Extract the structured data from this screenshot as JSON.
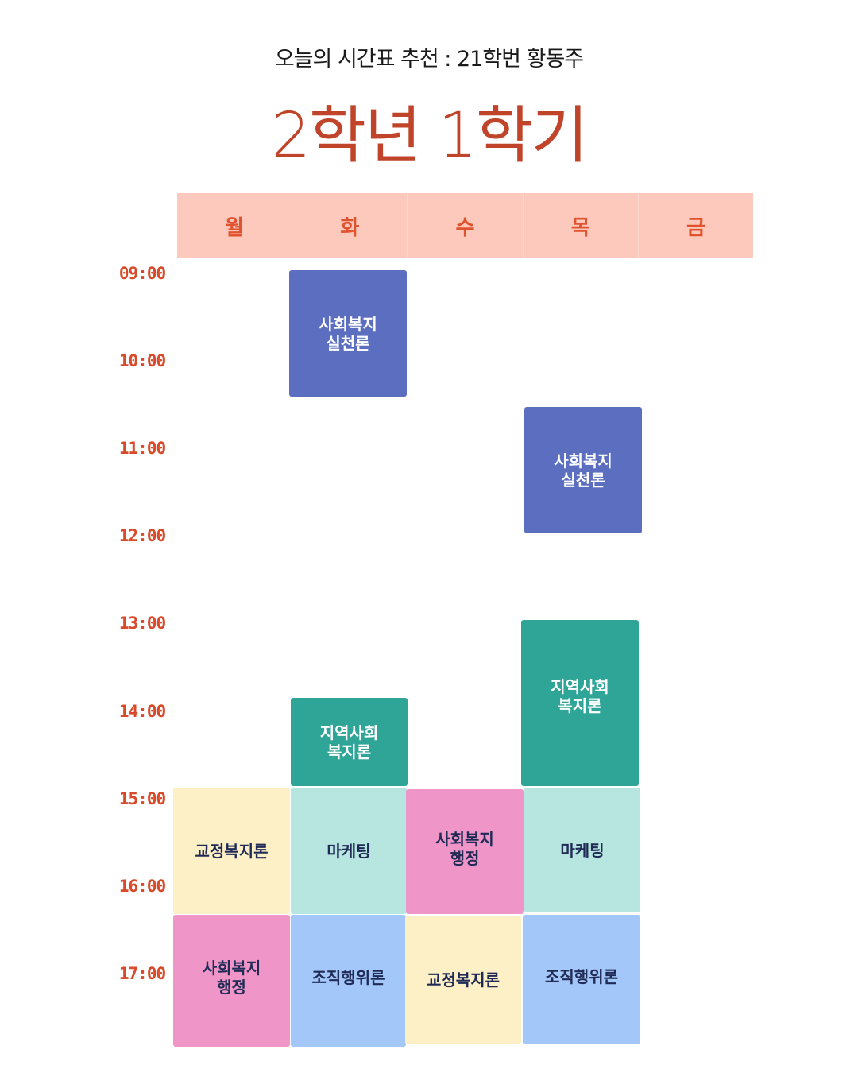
{
  "header": {
    "subtitle": "오늘의 시간표 추천 : 21학번 황동주",
    "title": "2학년 1학기"
  },
  "days": [
    "월",
    "화",
    "수",
    "목",
    "금"
  ],
  "times": [
    "09:00",
    "10:00",
    "11:00",
    "12:00",
    "13:00",
    "14:00",
    "15:00",
    "16:00",
    "17:00"
  ],
  "colors": {
    "accent": "#c0442a",
    "header_bg": "#fdc9bc",
    "indigo": "#5b6ebf",
    "teal": "#2fa597",
    "light_yellow": "#fdefc6",
    "light_teal": "#b7e5df",
    "pink": "#f095c7",
    "light_blue": "#a4c7fa"
  },
  "courses": [
    {
      "name": "사회복지\n실천론",
      "day": "화",
      "color": "indigo"
    },
    {
      "name": "사회복지\n실천론",
      "day": "목",
      "color": "indigo"
    },
    {
      "name": "지역사회\n복지론",
      "day": "목",
      "color": "teal"
    },
    {
      "name": "지역사회\n복지론",
      "day": "화",
      "color": "teal"
    },
    {
      "name": "교정복지론",
      "day": "월",
      "color": "light_yellow"
    },
    {
      "name": "마케팅",
      "day": "화",
      "color": "light_teal"
    },
    {
      "name": "사회복지\n행정",
      "day": "수",
      "color": "pink"
    },
    {
      "name": "마케팅",
      "day": "목",
      "color": "light_teal"
    },
    {
      "name": "사회복지\n행정",
      "day": "월",
      "color": "pink"
    },
    {
      "name": "조직행위론",
      "day": "화",
      "color": "light_blue"
    },
    {
      "name": "교정복지론",
      "day": "수",
      "color": "light_yellow"
    },
    {
      "name": "조직행위론",
      "day": "목",
      "color": "light_blue"
    }
  ]
}
